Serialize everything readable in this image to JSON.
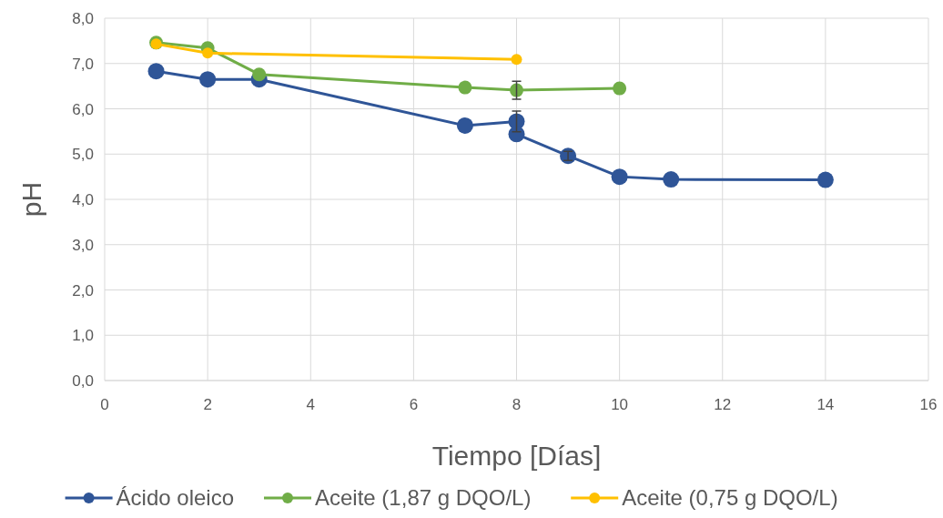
{
  "chart_data": {
    "type": "line",
    "xlabel": "Tiempo [Días]",
    "ylabel": "pH",
    "xlim": [
      0,
      16
    ],
    "xticks": [
      0,
      2,
      4,
      6,
      8,
      10,
      12,
      14,
      16
    ],
    "ylim": [
      0,
      8
    ],
    "yticks": [
      {
        "value": 0,
        "label": "0,0"
      },
      {
        "value": 1,
        "label": "1,0"
      },
      {
        "value": 2,
        "label": "2,0"
      },
      {
        "value": 3,
        "label": "3,0"
      },
      {
        "value": 4,
        "label": "4,0"
      },
      {
        "value": 5,
        "label": "5,0"
      },
      {
        "value": 6,
        "label": "6,0"
      },
      {
        "value": 7,
        "label": "7,0"
      },
      {
        "value": 8,
        "label": "8,0"
      }
    ],
    "grid": true,
    "legend": "bottom",
    "marker": "circle",
    "line_style": "solid",
    "series": [
      {
        "name": "Ácido oleico",
        "color": "#2f5597",
        "x": [
          1,
          2,
          3,
          7,
          8,
          8,
          9,
          10,
          11,
          14
        ],
        "values": [
          6.83,
          6.65,
          6.65,
          5.63,
          5.72,
          5.44,
          4.96,
          4.5,
          4.44,
          4.43
        ],
        "errors": [
          null,
          null,
          null,
          null,
          0.23,
          null,
          0.1,
          null,
          null,
          null
        ]
      },
      {
        "name": "Aceite (1,87 g DQO/L)",
        "color": "#70ad47",
        "x": [
          1,
          2,
          3,
          7,
          8,
          10
        ],
        "values": [
          7.46,
          7.34,
          6.76,
          6.47,
          6.41,
          6.45
        ],
        "errors": [
          null,
          null,
          null,
          null,
          0.2,
          null
        ]
      },
      {
        "name": "Aceite (0,75 g DQO/L)",
        "color": "#ffc000",
        "x": [
          1,
          2,
          8
        ],
        "values": [
          7.43,
          7.23,
          7.09
        ]
      }
    ]
  }
}
